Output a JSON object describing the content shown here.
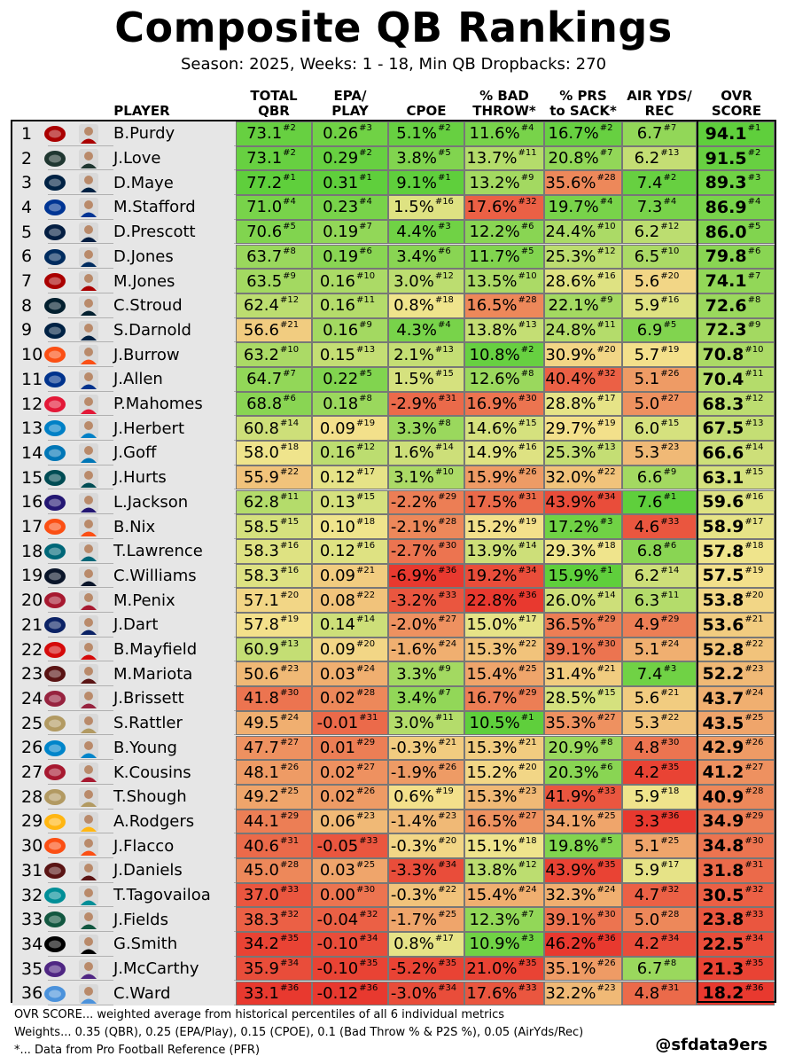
{
  "title": "Composite QB Rankings",
  "subtitle": "Season: 2025, Weeks: 1 - 18, Min QB Dropbacks: 270",
  "columns": [
    {
      "key": "player",
      "label": "PLAYER"
    },
    {
      "key": "qbr",
      "label": "TOTAL\nQBR"
    },
    {
      "key": "epa",
      "label": "EPA/\nPLAY"
    },
    {
      "key": "cpoe",
      "label": "CPOE"
    },
    {
      "key": "bad",
      "label": "% BAD\nTHROW*"
    },
    {
      "key": "prs",
      "label": "% PRS\nto SACK*"
    },
    {
      "key": "air",
      "label": "AIR YDS/\nREC"
    },
    {
      "key": "ovr",
      "label": "OVR\nSCORE"
    }
  ],
  "footer": {
    "line1": "OVR SCORE... weighted average from historical percentiles of all 6 individual metrics",
    "line2": "Weights... 0.35 (QBR), 0.25 (EPA/Play), 0.15 (CPOE), 0.1 (Bad Throw % & P2S %), 0.05 (AirYds/Rec)",
    "line3": "*... Data from Pro Football Reference (PFR)",
    "handle": "@sfdata9ers"
  },
  "team_colors": {
    "SF": "#aa0000",
    "GB": "#203731",
    "NE": "#002244",
    "LAR": "#003594",
    "DAL": "#041e42",
    "IND": "#002c5f",
    "HOU": "#03202f",
    "SEA": "#002244",
    "CIN": "#fb4f14",
    "BUF": "#00338d",
    "KC": "#e31837",
    "LAC": "#0080c6",
    "DET": "#0076b6",
    "PHI": "#004c54",
    "BAL": "#241773",
    "DEN": "#fb4f14",
    "JAX": "#006778",
    "CHI": "#0b162a",
    "ATL": "#a71930",
    "NYG": "#0b2265",
    "TB": "#d50a0a",
    "WAS": "#5a1414",
    "ARI": "#97233f",
    "NO": "#b29a62",
    "CAR": "#0085ca",
    "PIT": "#ffb612",
    "MIA": "#008e97",
    "NYJ": "#125740",
    "LV": "#000000",
    "MIN": "#4f2683",
    "TEN": "#4b92db"
  },
  "rows": [
    {
      "rank": "1",
      "team": "SF",
      "team_icon": "49ers-logo-icon",
      "player": "B.Purdy",
      "qbr": [
        "73.1",
        "#2"
      ],
      "epa": [
        "0.26",
        "#3"
      ],
      "cpoe": [
        "5.1%",
        "#2"
      ],
      "bad": [
        "11.6%",
        "#4"
      ],
      "prs": [
        "16.7%",
        "#2"
      ],
      "air": [
        "6.7",
        "#7"
      ],
      "ovr": [
        "94.1",
        "#1"
      ]
    },
    {
      "rank": "2",
      "team": "GB",
      "team_icon": "packers-logo-icon",
      "player": "J.Love",
      "qbr": [
        "73.1",
        "#2"
      ],
      "epa": [
        "0.29",
        "#2"
      ],
      "cpoe": [
        "3.8%",
        "#5"
      ],
      "bad": [
        "13.7%",
        "#11"
      ],
      "prs": [
        "20.8%",
        "#7"
      ],
      "air": [
        "6.2",
        "#13"
      ],
      "ovr": [
        "91.5",
        "#2"
      ]
    },
    {
      "rank": "3",
      "team": "NE",
      "team_icon": "patriots-logo-icon",
      "player": "D.Maye",
      "qbr": [
        "77.2",
        "#1"
      ],
      "epa": [
        "0.31",
        "#1"
      ],
      "cpoe": [
        "9.1%",
        "#1"
      ],
      "bad": [
        "13.2%",
        "#9"
      ],
      "prs": [
        "35.6%",
        "#28"
      ],
      "air": [
        "7.4",
        "#2"
      ],
      "ovr": [
        "89.3",
        "#3"
      ]
    },
    {
      "rank": "4",
      "team": "LAR",
      "team_icon": "rams-logo-icon",
      "player": "M.Stafford",
      "qbr": [
        "71.0",
        "#4"
      ],
      "epa": [
        "0.23",
        "#4"
      ],
      "cpoe": [
        "1.5%",
        "#16"
      ],
      "bad": [
        "17.6%",
        "#32"
      ],
      "prs": [
        "19.7%",
        "#4"
      ],
      "air": [
        "7.3",
        "#4"
      ],
      "ovr": [
        "86.9",
        "#4"
      ]
    },
    {
      "rank": "5",
      "team": "DAL",
      "team_icon": "cowboys-logo-icon",
      "player": "D.Prescott",
      "qbr": [
        "70.6",
        "#5"
      ],
      "epa": [
        "0.19",
        "#7"
      ],
      "cpoe": [
        "4.4%",
        "#3"
      ],
      "bad": [
        "12.2%",
        "#6"
      ],
      "prs": [
        "24.4%",
        "#10"
      ],
      "air": [
        "6.2",
        "#12"
      ],
      "ovr": [
        "86.0",
        "#5"
      ]
    },
    {
      "rank": "6",
      "team": "IND",
      "team_icon": "colts-logo-icon",
      "player": "D.Jones",
      "qbr": [
        "63.7",
        "#8"
      ],
      "epa": [
        "0.19",
        "#6"
      ],
      "cpoe": [
        "3.4%",
        "#6"
      ],
      "bad": [
        "11.7%",
        "#5"
      ],
      "prs": [
        "25.3%",
        "#12"
      ],
      "air": [
        "6.5",
        "#10"
      ],
      "ovr": [
        "79.8",
        "#6"
      ]
    },
    {
      "rank": "7",
      "team": "SF",
      "team_icon": "49ers-logo-icon",
      "player": "M.Jones",
      "qbr": [
        "63.5",
        "#9"
      ],
      "epa": [
        "0.16",
        "#10"
      ],
      "cpoe": [
        "3.0%",
        "#12"
      ],
      "bad": [
        "13.5%",
        "#10"
      ],
      "prs": [
        "28.6%",
        "#16"
      ],
      "air": [
        "5.6",
        "#20"
      ],
      "ovr": [
        "74.1",
        "#7"
      ]
    },
    {
      "rank": "8",
      "team": "HOU",
      "team_icon": "texans-logo-icon",
      "player": "C.Stroud",
      "qbr": [
        "62.4",
        "#12"
      ],
      "epa": [
        "0.16",
        "#11"
      ],
      "cpoe": [
        "0.8%",
        "#18"
      ],
      "bad": [
        "16.5%",
        "#28"
      ],
      "prs": [
        "22.1%",
        "#9"
      ],
      "air": [
        "5.9",
        "#16"
      ],
      "ovr": [
        "72.6",
        "#8"
      ]
    },
    {
      "rank": "9",
      "team": "SEA",
      "team_icon": "seahawks-logo-icon",
      "player": "S.Darnold",
      "qbr": [
        "56.6",
        "#21"
      ],
      "epa": [
        "0.16",
        "#9"
      ],
      "cpoe": [
        "4.3%",
        "#4"
      ],
      "bad": [
        "13.8%",
        "#13"
      ],
      "prs": [
        "24.8%",
        "#11"
      ],
      "air": [
        "6.9",
        "#5"
      ],
      "ovr": [
        "72.3",
        "#9"
      ]
    },
    {
      "rank": "10",
      "team": "CIN",
      "team_icon": "bengals-logo-icon",
      "player": "J.Burrow",
      "qbr": [
        "63.2",
        "#10"
      ],
      "epa": [
        "0.15",
        "#13"
      ],
      "cpoe": [
        "2.1%",
        "#13"
      ],
      "bad": [
        "10.8%",
        "#2"
      ],
      "prs": [
        "30.9%",
        "#20"
      ],
      "air": [
        "5.7",
        "#19"
      ],
      "ovr": [
        "70.8",
        "#10"
      ]
    },
    {
      "rank": "11",
      "team": "BUF",
      "team_icon": "bills-logo-icon",
      "player": "J.Allen",
      "qbr": [
        "64.7",
        "#7"
      ],
      "epa": [
        "0.22",
        "#5"
      ],
      "cpoe": [
        "1.5%",
        "#15"
      ],
      "bad": [
        "12.6%",
        "#8"
      ],
      "prs": [
        "40.4%",
        "#32"
      ],
      "air": [
        "5.1",
        "#26"
      ],
      "ovr": [
        "70.4",
        "#11"
      ]
    },
    {
      "rank": "12",
      "team": "KC",
      "team_icon": "chiefs-logo-icon",
      "player": "P.Mahomes",
      "qbr": [
        "68.8",
        "#6"
      ],
      "epa": [
        "0.18",
        "#8"
      ],
      "cpoe": [
        "-2.9%",
        "#31"
      ],
      "bad": [
        "16.9%",
        "#30"
      ],
      "prs": [
        "28.8%",
        "#17"
      ],
      "air": [
        "5.0",
        "#27"
      ],
      "ovr": [
        "68.3",
        "#12"
      ]
    },
    {
      "rank": "13",
      "team": "LAC",
      "team_icon": "chargers-logo-icon",
      "player": "J.Herbert",
      "qbr": [
        "60.8",
        "#14"
      ],
      "epa": [
        "0.09",
        "#19"
      ],
      "cpoe": [
        "3.3%",
        "#8"
      ],
      "bad": [
        "14.6%",
        "#15"
      ],
      "prs": [
        "29.7%",
        "#19"
      ],
      "air": [
        "6.0",
        "#15"
      ],
      "ovr": [
        "67.5",
        "#13"
      ]
    },
    {
      "rank": "14",
      "team": "DET",
      "team_icon": "lions-logo-icon",
      "player": "J.Goff",
      "qbr": [
        "58.0",
        "#18"
      ],
      "epa": [
        "0.16",
        "#12"
      ],
      "cpoe": [
        "1.6%",
        "#14"
      ],
      "bad": [
        "14.9%",
        "#16"
      ],
      "prs": [
        "25.3%",
        "#13"
      ],
      "air": [
        "5.3",
        "#23"
      ],
      "ovr": [
        "66.6",
        "#14"
      ]
    },
    {
      "rank": "15",
      "team": "PHI",
      "team_icon": "eagles-logo-icon",
      "player": "J.Hurts",
      "qbr": [
        "55.9",
        "#22"
      ],
      "epa": [
        "0.12",
        "#17"
      ],
      "cpoe": [
        "3.1%",
        "#10"
      ],
      "bad": [
        "15.9%",
        "#26"
      ],
      "prs": [
        "32.0%",
        "#22"
      ],
      "air": [
        "6.6",
        "#9"
      ],
      "ovr": [
        "63.1",
        "#15"
      ]
    },
    {
      "rank": "16",
      "team": "BAL",
      "team_icon": "ravens-logo-icon",
      "player": "L.Jackson",
      "qbr": [
        "62.8",
        "#11"
      ],
      "epa": [
        "0.13",
        "#15"
      ],
      "cpoe": [
        "-2.2%",
        "#29"
      ],
      "bad": [
        "17.5%",
        "#31"
      ],
      "prs": [
        "43.9%",
        "#34"
      ],
      "air": [
        "7.6",
        "#1"
      ],
      "ovr": [
        "59.6",
        "#16"
      ]
    },
    {
      "rank": "17",
      "team": "DEN",
      "team_icon": "broncos-logo-icon",
      "player": "B.Nix",
      "qbr": [
        "58.5",
        "#15"
      ],
      "epa": [
        "0.10",
        "#18"
      ],
      "cpoe": [
        "-2.1%",
        "#28"
      ],
      "bad": [
        "15.2%",
        "#19"
      ],
      "prs": [
        "17.2%",
        "#3"
      ],
      "air": [
        "4.6",
        "#33"
      ],
      "ovr": [
        "58.9",
        "#17"
      ]
    },
    {
      "rank": "18",
      "team": "JAX",
      "team_icon": "jaguars-logo-icon",
      "player": "T.Lawrence",
      "qbr": [
        "58.3",
        "#16"
      ],
      "epa": [
        "0.12",
        "#16"
      ],
      "cpoe": [
        "-2.7%",
        "#30"
      ],
      "bad": [
        "13.9%",
        "#14"
      ],
      "prs": [
        "29.3%",
        "#18"
      ],
      "air": [
        "6.8",
        "#6"
      ],
      "ovr": [
        "57.8",
        "#18"
      ]
    },
    {
      "rank": "19",
      "team": "CHI",
      "team_icon": "bears-logo-icon",
      "player": "C.Williams",
      "qbr": [
        "58.3",
        "#16"
      ],
      "epa": [
        "0.09",
        "#21"
      ],
      "cpoe": [
        "-6.9%",
        "#36"
      ],
      "bad": [
        "19.2%",
        "#34"
      ],
      "prs": [
        "15.9%",
        "#1"
      ],
      "air": [
        "6.2",
        "#14"
      ],
      "ovr": [
        "57.5",
        "#19"
      ]
    },
    {
      "rank": "20",
      "team": "ATL",
      "team_icon": "falcons-logo-icon",
      "player": "M.Penix",
      "qbr": [
        "57.1",
        "#20"
      ],
      "epa": [
        "0.08",
        "#22"
      ],
      "cpoe": [
        "-3.2%",
        "#33"
      ],
      "bad": [
        "22.8%",
        "#36"
      ],
      "prs": [
        "26.0%",
        "#14"
      ],
      "air": [
        "6.3",
        "#11"
      ],
      "ovr": [
        "53.8",
        "#20"
      ]
    },
    {
      "rank": "21",
      "team": "NYG",
      "team_icon": "giants-logo-icon",
      "player": "J.Dart",
      "qbr": [
        "57.8",
        "#19"
      ],
      "epa": [
        "0.14",
        "#14"
      ],
      "cpoe": [
        "-2.0%",
        "#27"
      ],
      "bad": [
        "15.0%",
        "#17"
      ],
      "prs": [
        "36.5%",
        "#29"
      ],
      "air": [
        "4.9",
        "#29"
      ],
      "ovr": [
        "53.6",
        "#21"
      ]
    },
    {
      "rank": "22",
      "team": "TB",
      "team_icon": "buccaneers-logo-icon",
      "player": "B.Mayfield",
      "qbr": [
        "60.9",
        "#13"
      ],
      "epa": [
        "0.09",
        "#20"
      ],
      "cpoe": [
        "-1.6%",
        "#24"
      ],
      "bad": [
        "15.3%",
        "#22"
      ],
      "prs": [
        "39.1%",
        "#30"
      ],
      "air": [
        "5.1",
        "#24"
      ],
      "ovr": [
        "52.8",
        "#22"
      ]
    },
    {
      "rank": "23",
      "team": "WAS",
      "team_icon": "commanders-logo-icon",
      "player": "M.Mariota",
      "qbr": [
        "50.6",
        "#23"
      ],
      "epa": [
        "0.03",
        "#24"
      ],
      "cpoe": [
        "3.3%",
        "#9"
      ],
      "bad": [
        "15.4%",
        "#25"
      ],
      "prs": [
        "31.4%",
        "#21"
      ],
      "air": [
        "7.4",
        "#3"
      ],
      "ovr": [
        "52.2",
        "#23"
      ]
    },
    {
      "rank": "24",
      "team": "ARI",
      "team_icon": "cardinals-logo-icon",
      "player": "J.Brissett",
      "qbr": [
        "41.8",
        "#30"
      ],
      "epa": [
        "0.02",
        "#28"
      ],
      "cpoe": [
        "3.4%",
        "#7"
      ],
      "bad": [
        "16.7%",
        "#29"
      ],
      "prs": [
        "28.5%",
        "#15"
      ],
      "air": [
        "5.6",
        "#21"
      ],
      "ovr": [
        "43.7",
        "#24"
      ]
    },
    {
      "rank": "25",
      "team": "NO",
      "team_icon": "saints-logo-icon",
      "player": "S.Rattler",
      "qbr": [
        "49.5",
        "#24"
      ],
      "epa": [
        "-0.01",
        "#31"
      ],
      "cpoe": [
        "3.0%",
        "#11"
      ],
      "bad": [
        "10.5%",
        "#1"
      ],
      "prs": [
        "35.3%",
        "#27"
      ],
      "air": [
        "5.3",
        "#22"
      ],
      "ovr": [
        "43.5",
        "#25"
      ]
    },
    {
      "rank": "26",
      "team": "CAR",
      "team_icon": "panthers-logo-icon",
      "player": "B.Young",
      "qbr": [
        "47.7",
        "#27"
      ],
      "epa": [
        "0.01",
        "#29"
      ],
      "cpoe": [
        "-0.3%",
        "#21"
      ],
      "bad": [
        "15.3%",
        "#21"
      ],
      "prs": [
        "20.9%",
        "#8"
      ],
      "air": [
        "4.8",
        "#30"
      ],
      "ovr": [
        "42.9",
        "#26"
      ]
    },
    {
      "rank": "27",
      "team": "ATL",
      "team_icon": "falcons-logo-icon",
      "player": "K.Cousins",
      "qbr": [
        "48.1",
        "#26"
      ],
      "epa": [
        "0.02",
        "#27"
      ],
      "cpoe": [
        "-1.9%",
        "#26"
      ],
      "bad": [
        "15.2%",
        "#20"
      ],
      "prs": [
        "20.3%",
        "#6"
      ],
      "air": [
        "4.2",
        "#35"
      ],
      "ovr": [
        "41.2",
        "#27"
      ]
    },
    {
      "rank": "28",
      "team": "NO",
      "team_icon": "saints-logo-icon",
      "player": "T.Shough",
      "qbr": [
        "49.2",
        "#25"
      ],
      "epa": [
        "0.02",
        "#26"
      ],
      "cpoe": [
        "0.6%",
        "#19"
      ],
      "bad": [
        "15.3%",
        "#23"
      ],
      "prs": [
        "41.9%",
        "#33"
      ],
      "air": [
        "5.9",
        "#18"
      ],
      "ovr": [
        "40.9",
        "#28"
      ]
    },
    {
      "rank": "29",
      "team": "PIT",
      "team_icon": "steelers-logo-icon",
      "player": "A.Rodgers",
      "qbr": [
        "44.1",
        "#29"
      ],
      "epa": [
        "0.06",
        "#23"
      ],
      "cpoe": [
        "-1.4%",
        "#23"
      ],
      "bad": [
        "16.5%",
        "#27"
      ],
      "prs": [
        "34.1%",
        "#25"
      ],
      "air": [
        "3.3",
        "#36"
      ],
      "ovr": [
        "34.9",
        "#29"
      ]
    },
    {
      "rank": "30",
      "team": "CIN",
      "team_icon": "bengals-logo-icon",
      "player": "J.Flacco",
      "qbr": [
        "40.6",
        "#31"
      ],
      "epa": [
        "-0.05",
        "#33"
      ],
      "cpoe": [
        "-0.3%",
        "#20"
      ],
      "bad": [
        "15.1%",
        "#18"
      ],
      "prs": [
        "19.8%",
        "#5"
      ],
      "air": [
        "5.1",
        "#25"
      ],
      "ovr": [
        "34.8",
        "#30"
      ]
    },
    {
      "rank": "31",
      "team": "WAS",
      "team_icon": "commanders-logo-icon",
      "player": "J.Daniels",
      "qbr": [
        "45.0",
        "#28"
      ],
      "epa": [
        "0.03",
        "#25"
      ],
      "cpoe": [
        "-3.3%",
        "#34"
      ],
      "bad": [
        "13.8%",
        "#12"
      ],
      "prs": [
        "43.9%",
        "#35"
      ],
      "air": [
        "5.9",
        "#17"
      ],
      "ovr": [
        "31.8",
        "#31"
      ]
    },
    {
      "rank": "32",
      "team": "MIA",
      "team_icon": "dolphins-logo-icon",
      "player": "T.Tagovailoa",
      "qbr": [
        "37.0",
        "#33"
      ],
      "epa": [
        "0.00",
        "#30"
      ],
      "cpoe": [
        "-0.3%",
        "#22"
      ],
      "bad": [
        "15.4%",
        "#24"
      ],
      "prs": [
        "32.3%",
        "#24"
      ],
      "air": [
        "4.7",
        "#32"
      ],
      "ovr": [
        "30.5",
        "#32"
      ]
    },
    {
      "rank": "33",
      "team": "NYJ",
      "team_icon": "jets-logo-icon",
      "player": "J.Fields",
      "qbr": [
        "38.3",
        "#32"
      ],
      "epa": [
        "-0.04",
        "#32"
      ],
      "cpoe": [
        "-1.7%",
        "#25"
      ],
      "bad": [
        "12.3%",
        "#7"
      ],
      "prs": [
        "39.1%",
        "#30"
      ],
      "air": [
        "5.0",
        "#28"
      ],
      "ovr": [
        "23.8",
        "#33"
      ]
    },
    {
      "rank": "34",
      "team": "LV",
      "team_icon": "raiders-logo-icon",
      "player": "G.Smith",
      "qbr": [
        "34.2",
        "#35"
      ],
      "epa": [
        "-0.10",
        "#34"
      ],
      "cpoe": [
        "0.8%",
        "#17"
      ],
      "bad": [
        "10.9%",
        "#3"
      ],
      "prs": [
        "46.2%",
        "#36"
      ],
      "air": [
        "4.2",
        "#34"
      ],
      "ovr": [
        "22.5",
        "#34"
      ]
    },
    {
      "rank": "35",
      "team": "MIN",
      "team_icon": "vikings-logo-icon",
      "player": "J.McCarthy",
      "qbr": [
        "35.9",
        "#34"
      ],
      "epa": [
        "-0.10",
        "#35"
      ],
      "cpoe": [
        "-5.2%",
        "#35"
      ],
      "bad": [
        "21.0%",
        "#35"
      ],
      "prs": [
        "35.1%",
        "#26"
      ],
      "air": [
        "6.7",
        "#8"
      ],
      "ovr": [
        "21.3",
        "#35"
      ]
    },
    {
      "rank": "36",
      "team": "TEN",
      "team_icon": "titans-logo-icon",
      "player": "C.Ward",
      "qbr": [
        "33.1",
        "#36"
      ],
      "epa": [
        "-0.12",
        "#36"
      ],
      "cpoe": [
        "-3.0%",
        "#34"
      ],
      "bad": [
        "17.6%",
        "#33"
      ],
      "prs": [
        "32.2%",
        "#23"
      ],
      "air": [
        "4.8",
        "#31"
      ],
      "ovr": [
        "18.2",
        "#36"
      ]
    }
  ],
  "chart_data": {
    "type": "table",
    "title": "Composite QB Rankings",
    "subtitle": "Season: 2025, Weeks: 1 - 18, Min QB Dropbacks: 270",
    "color_scale": {
      "best": "#5fcf3c",
      "mid": "#f3e58e",
      "worst": "#e8392f"
    }
  }
}
